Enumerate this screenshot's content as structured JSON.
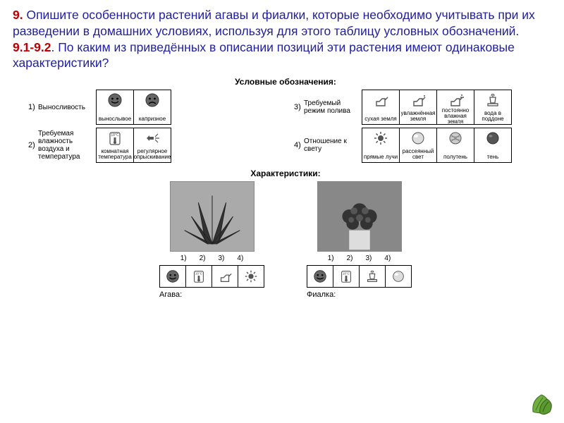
{
  "prompt": {
    "q9_num": "9.",
    "q9_text": " Опишите особенности растений агавы и фиалки, которые необходимо учитывать при их разведении в домашних условиях, используя для этого таблицу условных обозначений. ",
    "q912_num": "9.1-9.2",
    "q912_text": ". По каким из приведённых в описании позиций эти растения имеют одинаковые характеристики?"
  },
  "legend": {
    "title": "Условные обозначения:",
    "rows": [
      {
        "num": "1)",
        "label": "Выносливость",
        "cells": [
          {
            "icon": "face-happy",
            "text": "вынослывое"
          },
          {
            "icon": "face-sad",
            "text": "капризное"
          }
        ]
      },
      {
        "num": "3)",
        "label": "Требуемый режим полива",
        "cells": [
          {
            "icon": "can-dry",
            "text": "сухая земля"
          },
          {
            "icon": "can-moist",
            "text": "увлажнённая земля"
          },
          {
            "icon": "can-wet",
            "text": "постоянно влажная земля"
          },
          {
            "icon": "pot-tray",
            "text": "вода в поддоне"
          }
        ]
      },
      {
        "num": "2)",
        "label": "Требуемая влажность воздуха и температура",
        "cells": [
          {
            "icon": "thermo",
            "text": "комнатная температура"
          },
          {
            "icon": "spray",
            "text": "регулярное опрыскивание"
          }
        ]
      },
      {
        "num": "4)",
        "label": "Отношение к свету",
        "cells": [
          {
            "icon": "sun",
            "text": "прямые лучи"
          },
          {
            "icon": "ball-light",
            "text": "рассеянный свет"
          },
          {
            "icon": "ball-hatch",
            "text": "полутень"
          },
          {
            "icon": "ball-dark",
            "text": "тень"
          }
        ]
      }
    ]
  },
  "characteristics": {
    "title": "Характеристики:",
    "nums": [
      "1)",
      "2)",
      "3)",
      "4)"
    ],
    "plants": [
      {
        "name": "Агава:",
        "image": "agave",
        "icons": [
          "face-happy",
          "thermo",
          "can-dry",
          "sun"
        ]
      },
      {
        "name": "Фиалка:",
        "image": "violet",
        "icons": [
          "face-happy",
          "thermo",
          "pot-tray",
          "ball-light"
        ]
      }
    ]
  },
  "colors": {
    "text_blue": "#2020a0",
    "text_red": "#c00000",
    "icon_gray": "#555555",
    "leaf_green": "#5a9a2f"
  }
}
